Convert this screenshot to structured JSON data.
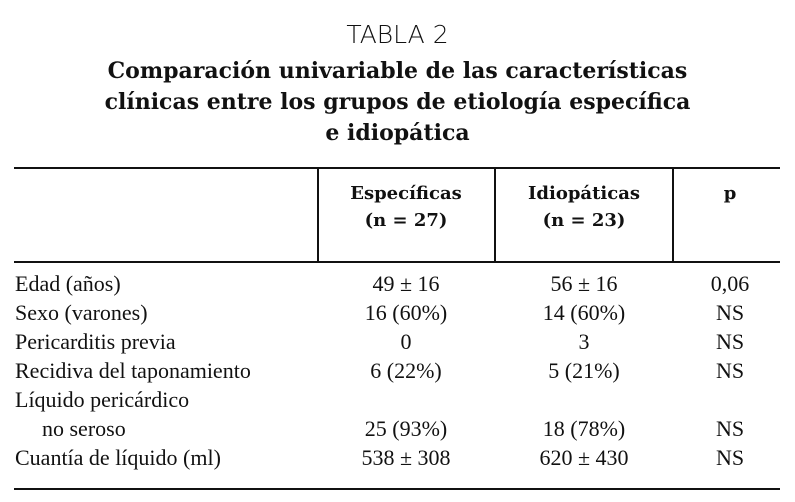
{
  "title": "TABLA 2",
  "subtitle_lines": [
    "Comparación univariable de las características",
    "clínicas entre los grupos de etiología específica",
    "e idiopática"
  ],
  "table": {
    "header": [
      [],
      [
        "Específicas",
        "(n = 27)"
      ],
      [
        "Idiopáticas",
        "(n = 23)"
      ],
      [
        "p"
      ]
    ],
    "rows": [
      [
        [
          "Edad (años)"
        ],
        "49 ± 16",
        "56 ± 16",
        "0,06"
      ],
      [
        [
          "Sexo (varones)"
        ],
        "16 (60%)",
        "14 (60%)",
        "NS"
      ],
      [
        [
          "Pericarditis previa"
        ],
        "0",
        "3",
        "NS"
      ],
      [
        [
          "Recidiva del taponamiento"
        ],
        "6 (22%)",
        "5 (21%)",
        "NS"
      ],
      [
        [
          "Líquido pericárdico",
          "no seroso"
        ],
        "25 (93%)",
        "18 (78%)",
        "NS"
      ],
      [
        [
          "Cuantía de líquido (ml)"
        ],
        "538 ± 308",
        "620 ± 430",
        "NS"
      ]
    ]
  }
}
